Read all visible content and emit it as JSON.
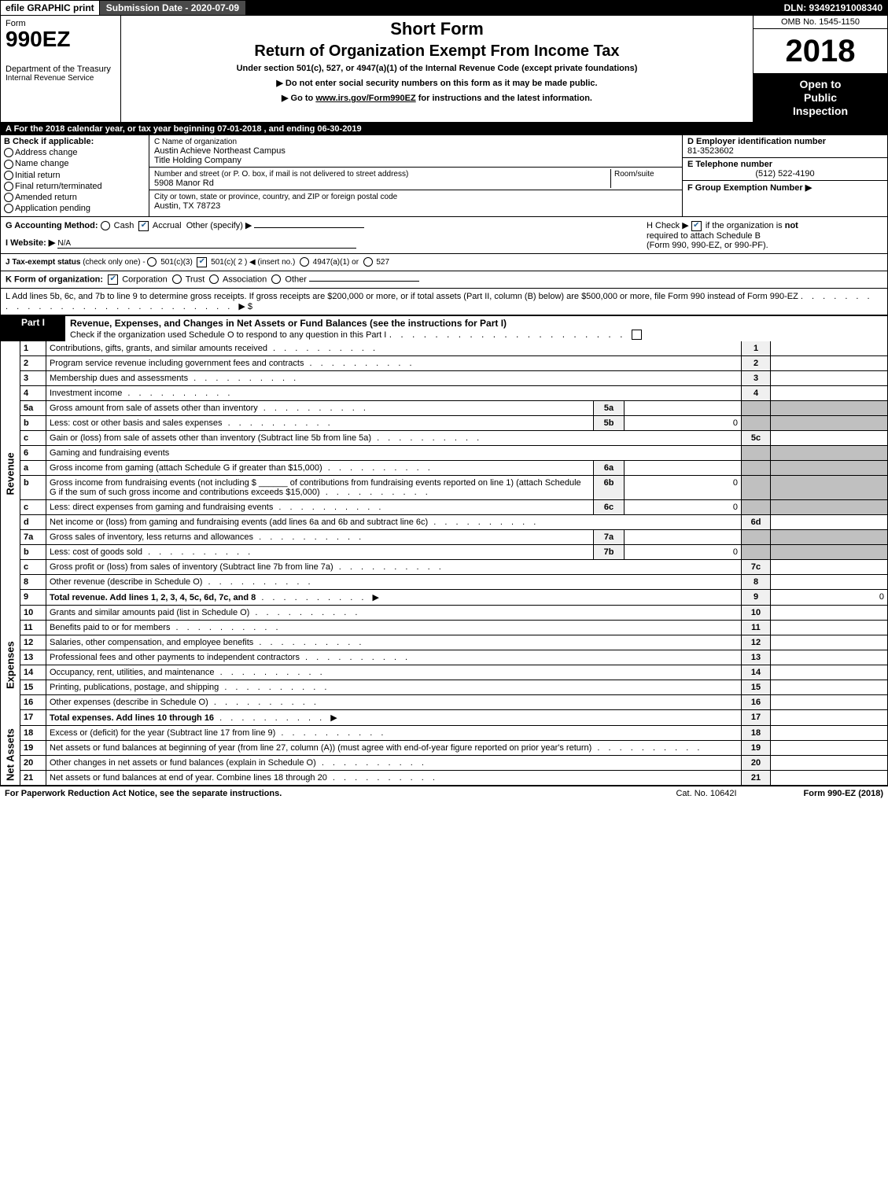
{
  "top": {
    "efile": "efile GRAPHIC print",
    "submission_label": "Submission Date - 2020-07-09",
    "dln": "DLN: 93492191008340"
  },
  "header": {
    "form_word": "Form",
    "form_number": "990EZ",
    "short_form": "Short Form",
    "title": "Return of Organization Exempt From Income Tax",
    "under_section": "Under section 501(c), 527, or 4947(a)(1) of the Internal Revenue Code (except private foundations)",
    "do_not": "▶ Do not enter social security numbers on this form as it may be made public.",
    "goto_pre": "▶ Go to ",
    "goto_link": "www.irs.gov/Form990EZ",
    "goto_post": " for instructions and the latest information.",
    "dept": "Department of the Treasury",
    "irs": "Internal Revenue Service",
    "omb": "OMB No. 1545-1150",
    "year": "2018",
    "open_l1": "Open to",
    "open_l2": "Public",
    "open_l3": "Inspection"
  },
  "period": {
    "line_a_pre": "A For the 2018 calendar year, or tax year beginning ",
    "begin": "07-01-2018",
    "mid": " , and ending ",
    "end": "06-30-2019"
  },
  "box_b": {
    "head": "B Check if applicable:",
    "opts": [
      "Address change",
      "Name change",
      "Initial return",
      "Final return/terminated",
      "Amended return",
      "Application pending"
    ]
  },
  "box_c": {
    "name_label": "C Name of organization",
    "name_l1": "Austin Achieve Northeast Campus",
    "name_l2": "Title Holding Company",
    "addr_label": "Number and street (or P. O. box, if mail is not delivered to street address)",
    "room_label": "Room/suite",
    "addr": "5908 Manor Rd",
    "city_label": "City or town, state or province, country, and ZIP or foreign postal code",
    "city": "Austin, TX  78723"
  },
  "box_d": {
    "ein_label": "D Employer identification number",
    "ein": "81-3523602",
    "tel_label": "E Telephone number",
    "tel": "(512) 522-4190",
    "group_label": "F Group Exemption Number  ▶"
  },
  "line_g": {
    "label": "G Accounting Method:",
    "cash": "Cash",
    "accrual": "Accrual",
    "other": "Other (specify) ▶"
  },
  "line_h": {
    "pre": "H  Check ▶ ",
    "post": " if the organization is ",
    "not": "not",
    "l2": "required to attach Schedule B",
    "l3": "(Form 990, 990-EZ, or 990-PF)."
  },
  "line_i": {
    "label": "I Website: ▶",
    "val": "N/A"
  },
  "line_j": {
    "label": "J Tax-exempt status",
    "small": "(check only one) -",
    "o1": "501(c)(3)",
    "o2": "501(c)( 2 ) ◀ (insert no.)",
    "o3": "4947(a)(1) or",
    "o4": "527"
  },
  "line_k": {
    "label": "K Form of organization:",
    "opts": [
      "Corporation",
      "Trust",
      "Association",
      "Other"
    ]
  },
  "line_l": {
    "text": "L Add lines 5b, 6c, and 7b to line 9 to determine gross receipts. If gross receipts are $200,000 or more, or if total assets (Part II, column (B) below) are $500,000 or more, file Form 990 instead of Form 990-EZ",
    "arrow": "▶ $"
  },
  "part1": {
    "label": "Part I",
    "title": "Revenue, Expenses, and Changes in Net Assets or Fund Balances (see the instructions for Part I)",
    "check_line": "Check if the organization used Schedule O to respond to any question in this Part I",
    "check_box_end": "▢"
  },
  "side_labels": {
    "rev": "Revenue",
    "exp": "Expenses",
    "net": "Net Assets"
  },
  "rows": [
    {
      "n": "1",
      "d": "Contributions, gifts, grants, and similar amounts received",
      "ln": "1",
      "v": ""
    },
    {
      "n": "2",
      "d": "Program service revenue including government fees and contracts",
      "ln": "2",
      "v": ""
    },
    {
      "n": "3",
      "d": "Membership dues and assessments",
      "ln": "3",
      "v": ""
    },
    {
      "n": "4",
      "d": "Investment income",
      "ln": "4",
      "v": ""
    },
    {
      "n": "5a",
      "d": "Gross amount from sale of assets other than inventory",
      "sn": "5a",
      "sv": ""
    },
    {
      "n": "b",
      "d": "Less: cost or other basis and sales expenses",
      "sn": "5b",
      "sv": "0"
    },
    {
      "n": "c",
      "d": "Gain or (loss) from sale of assets other than inventory (Subtract line 5b from line 5a)",
      "ln": "5c",
      "v": ""
    },
    {
      "n": "6",
      "d": "Gaming and fundraising events"
    },
    {
      "n": "a",
      "d": "Gross income from gaming (attach Schedule G if greater than $15,000)",
      "sn": "6a",
      "sv": ""
    },
    {
      "n": "b",
      "d": "Gross income from fundraising events (not including $ ______ of contributions from fundraising events reported on line 1) (attach Schedule G if the sum of such gross income and contributions exceeds $15,000)",
      "sn": "6b",
      "sv": "0"
    },
    {
      "n": "c",
      "d": "Less: direct expenses from gaming and fundraising events",
      "sn": "6c",
      "sv": "0"
    },
    {
      "n": "d",
      "d": "Net income or (loss) from gaming and fundraising events (add lines 6a and 6b and subtract line 6c)",
      "ln": "6d",
      "v": ""
    },
    {
      "n": "7a",
      "d": "Gross sales of inventory, less returns and allowances",
      "sn": "7a",
      "sv": ""
    },
    {
      "n": "b",
      "d": "Less: cost of goods sold",
      "sn": "7b",
      "sv": "0"
    },
    {
      "n": "c",
      "d": "Gross profit or (loss) from sales of inventory (Subtract line 7b from line 7a)",
      "ln": "7c",
      "v": ""
    },
    {
      "n": "8",
      "d": "Other revenue (describe in Schedule O)",
      "ln": "8",
      "v": ""
    },
    {
      "n": "9",
      "d": "Total revenue. Add lines 1, 2, 3, 4, 5c, 6d, 7c, and 8",
      "ln": "9",
      "v": "0",
      "bold": true,
      "arrow": true
    }
  ],
  "exp_rows": [
    {
      "n": "10",
      "d": "Grants and similar amounts paid (list in Schedule O)",
      "ln": "10"
    },
    {
      "n": "11",
      "d": "Benefits paid to or for members",
      "ln": "11"
    },
    {
      "n": "12",
      "d": "Salaries, other compensation, and employee benefits",
      "ln": "12"
    },
    {
      "n": "13",
      "d": "Professional fees and other payments to independent contractors",
      "ln": "13"
    },
    {
      "n": "14",
      "d": "Occupancy, rent, utilities, and maintenance",
      "ln": "14"
    },
    {
      "n": "15",
      "d": "Printing, publications, postage, and shipping",
      "ln": "15"
    },
    {
      "n": "16",
      "d": "Other expenses (describe in Schedule O)",
      "ln": "16"
    },
    {
      "n": "17",
      "d": "Total expenses. Add lines 10 through 16",
      "ln": "17",
      "bold": true,
      "arrow": true
    }
  ],
  "net_rows": [
    {
      "n": "18",
      "d": "Excess or (deficit) for the year (Subtract line 17 from line 9)",
      "ln": "18"
    },
    {
      "n": "19",
      "d": "Net assets or fund balances at beginning of year (from line 27, column (A)) (must agree with end-of-year figure reported on prior year's return)",
      "ln": "19"
    },
    {
      "n": "20",
      "d": "Other changes in net assets or fund balances (explain in Schedule O)",
      "ln": "20"
    },
    {
      "n": "21",
      "d": "Net assets or fund balances at end of year. Combine lines 18 through 20",
      "ln": "21"
    }
  ],
  "footer": {
    "left": "For Paperwork Reduction Act Notice, see the separate instructions.",
    "cat": "Cat. No. 10642I",
    "form": "Form 990-EZ (2018)"
  }
}
